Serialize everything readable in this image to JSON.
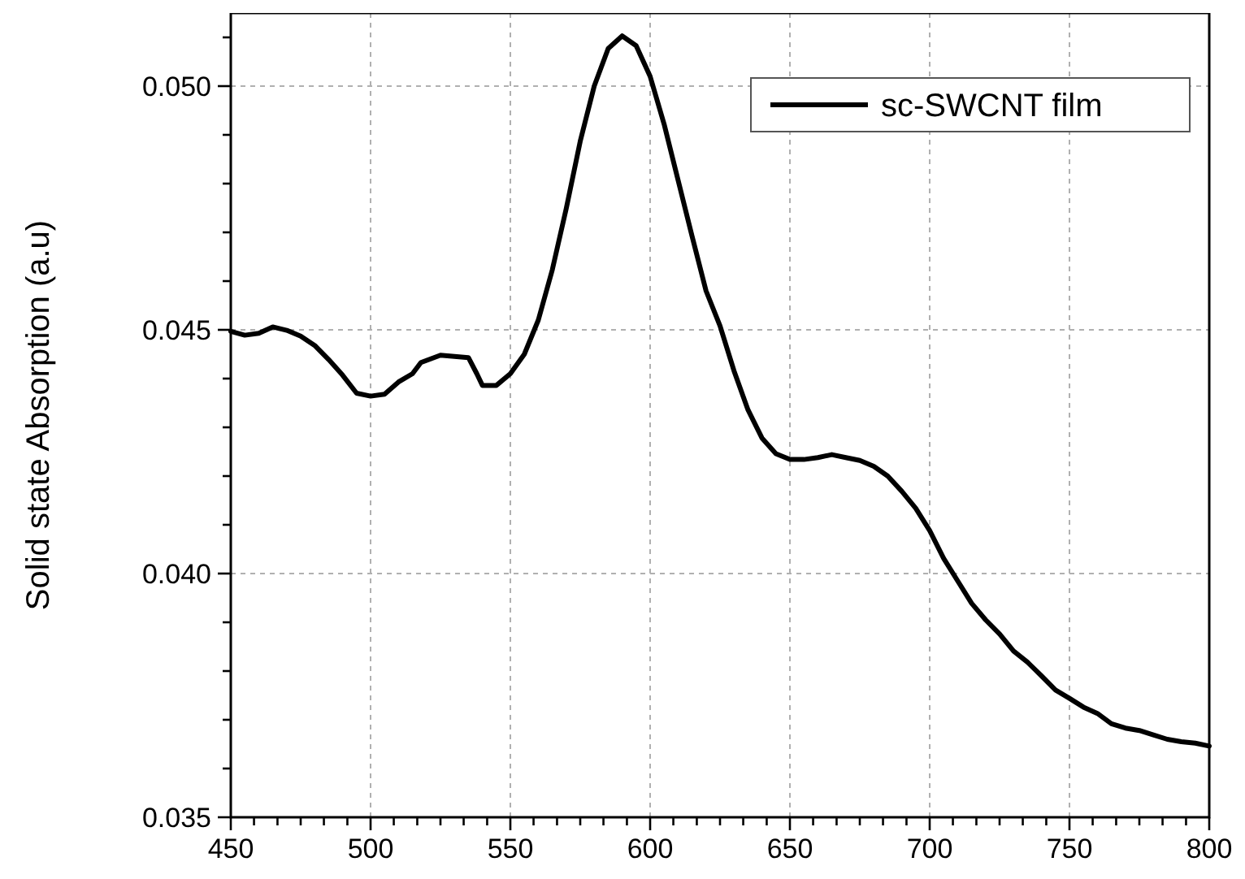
{
  "chart_data": {
    "type": "line",
    "ylabel": "Solid state Absorption (a.u)",
    "xlim": [
      450,
      800
    ],
    "ylim": [
      0.035,
      0.0515
    ],
    "xticks": [
      450,
      {
        "value": 458.3,
        "label": null
      },
      {
        "value": 466.7,
        "label": null
      },
      {
        "value": 475,
        "label": null
      },
      {
        "value": 483.3,
        "label": null
      },
      {
        "value": 491.7,
        "label": null
      },
      500,
      {
        "value": 508.3,
        "label": null
      },
      {
        "value": 516.7,
        "label": null
      },
      {
        "value": 525,
        "label": null
      },
      {
        "value": 533.3,
        "label": null
      },
      {
        "value": 541.7,
        "label": null
      },
      550,
      {
        "value": 558.3,
        "label": null
      },
      {
        "value": 566.7,
        "label": null
      },
      {
        "value": 575,
        "label": null
      },
      {
        "value": 583.3,
        "label": null
      },
      {
        "value": 591.7,
        "label": null
      },
      600,
      {
        "value": 608.3,
        "label": null
      },
      {
        "value": 616.7,
        "label": null
      },
      {
        "value": 625,
        "label": null
      },
      {
        "value": 633.3,
        "label": null
      },
      {
        "value": 641.7,
        "label": null
      },
      650,
      {
        "value": 658.3,
        "label": null
      },
      {
        "value": 666.7,
        "label": null
      },
      {
        "value": 675,
        "label": null
      },
      {
        "value": 683.3,
        "label": null
      },
      {
        "value": 691.7,
        "label": null
      },
      700,
      {
        "value": 708.3,
        "label": null
      },
      {
        "value": 716.7,
        "label": null
      },
      {
        "value": 725,
        "label": null
      },
      {
        "value": 733.3,
        "label": null
      },
      {
        "value": 741.7,
        "label": null
      },
      750,
      {
        "value": 758.3,
        "label": null
      },
      {
        "value": 766.7,
        "label": null
      },
      {
        "value": 775,
        "label": null
      },
      {
        "value": 783.3,
        "label": null
      },
      {
        "value": 791.7,
        "label": null
      },
      800
    ],
    "yticks": [
      {
        "value": 0.035,
        "label": "0.035"
      },
      {
        "value": 0.036,
        "label": null
      },
      {
        "value": 0.037,
        "label": null
      },
      {
        "value": 0.038,
        "label": null
      },
      {
        "value": 0.039,
        "label": null
      },
      {
        "value": 0.04,
        "label": "0.040"
      },
      {
        "value": 0.041,
        "label": null
      },
      {
        "value": 0.042,
        "label": null
      },
      {
        "value": 0.043,
        "label": null
      },
      {
        "value": 0.044,
        "label": null
      },
      {
        "value": 0.045,
        "label": "0.045"
      },
      {
        "value": 0.046,
        "label": null
      },
      {
        "value": 0.047,
        "label": null
      },
      {
        "value": 0.048,
        "label": null
      },
      {
        "value": 0.049,
        "label": null
      },
      {
        "value": 0.05,
        "label": "0.050"
      },
      {
        "value": 0.051,
        "label": null
      }
    ],
    "grid": true,
    "legend": "top right",
    "line_style": "solid",
    "x": [
      450,
      455,
      460,
      465,
      470,
      475,
      480,
      485,
      490,
      495,
      500,
      505,
      510,
      515,
      518,
      525,
      535,
      538,
      540,
      545,
      550,
      555,
      560,
      565,
      570,
      575,
      580,
      585,
      590,
      595,
      600,
      605,
      610,
      615,
      620,
      625,
      630,
      635,
      640,
      645,
      650,
      655,
      660,
      665,
      670,
      675,
      680,
      685,
      690,
      695,
      700,
      705,
      710,
      715,
      720,
      725,
      730,
      735,
      740,
      745,
      750,
      755,
      760,
      765,
      770,
      775,
      780,
      785,
      790,
      795,
      800
    ],
    "series": [
      {
        "name": "sc-SWCNT film",
        "color": "#000000",
        "values": [
          0.04497,
          0.04489,
          0.04493,
          0.04506,
          0.04499,
          0.04487,
          0.04468,
          0.04439,
          0.04407,
          0.0437,
          0.04364,
          0.04368,
          0.04393,
          0.0441,
          0.04433,
          0.04448,
          0.04443,
          0.0441,
          0.04386,
          0.04386,
          0.0441,
          0.0445,
          0.0452,
          0.04623,
          0.04749,
          0.04887,
          0.05,
          0.05077,
          0.05103,
          0.05083,
          0.0502,
          0.04922,
          0.04807,
          0.04692,
          0.0458,
          0.04508,
          0.04416,
          0.04336,
          0.04278,
          0.04246,
          0.04234,
          0.04234,
          0.04238,
          0.04244,
          0.04238,
          0.04232,
          0.0422,
          0.042,
          0.04169,
          0.04134,
          0.04088,
          0.04031,
          0.03985,
          0.03939,
          0.03905,
          0.03876,
          0.03841,
          0.03818,
          0.0379,
          0.03761,
          0.03744,
          0.03726,
          0.03713,
          0.03692,
          0.03683,
          0.03678,
          0.03669,
          0.0366,
          0.03655,
          0.03652,
          0.03646
        ]
      }
    ]
  }
}
